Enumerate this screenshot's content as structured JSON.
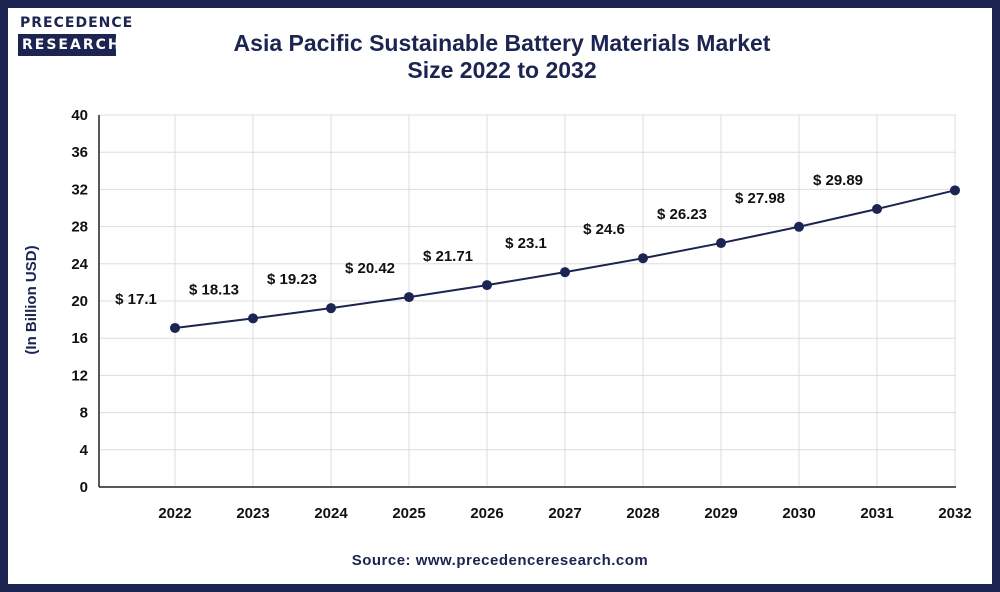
{
  "header": {
    "logo_top": "PRECEDENCE",
    "logo_bottom": "RESEARCH",
    "title_line1": "Asia Pacific Sustainable Battery Materials Market",
    "title_line2": "Size 2022 to 2032"
  },
  "footer": {
    "source": "Source: www.precedenceresearch.com"
  },
  "colors": {
    "frame": "#1c2452",
    "line": "#1c2452",
    "grid": "#dddddd",
    "text": "#111111"
  },
  "chart_data": {
    "type": "line",
    "ylabel": "(In Billion USD)",
    "xlabel": "",
    "ylim": [
      0,
      40
    ],
    "yticks": [
      0,
      4,
      8,
      12,
      16,
      20,
      24,
      28,
      32,
      36,
      40
    ],
    "categories": [
      "2022",
      "2023",
      "2024",
      "2025",
      "2026",
      "2027",
      "2028",
      "2029",
      "2030",
      "2031",
      "2032"
    ],
    "values": [
      17.1,
      18.13,
      19.23,
      20.42,
      21.71,
      23.1,
      24.6,
      26.23,
      27.98,
      29.89,
      31.9
    ],
    "data_labels": [
      "$ 17.1",
      "$ 18.13",
      "$ 19.23",
      "$ 20.42",
      "$ 21.71",
      "$ 23.1",
      "$ 24.6",
      "$ 26.23",
      "$ 27.98",
      "$ 29.89",
      ""
    ],
    "grid": true,
    "legend": "none"
  }
}
